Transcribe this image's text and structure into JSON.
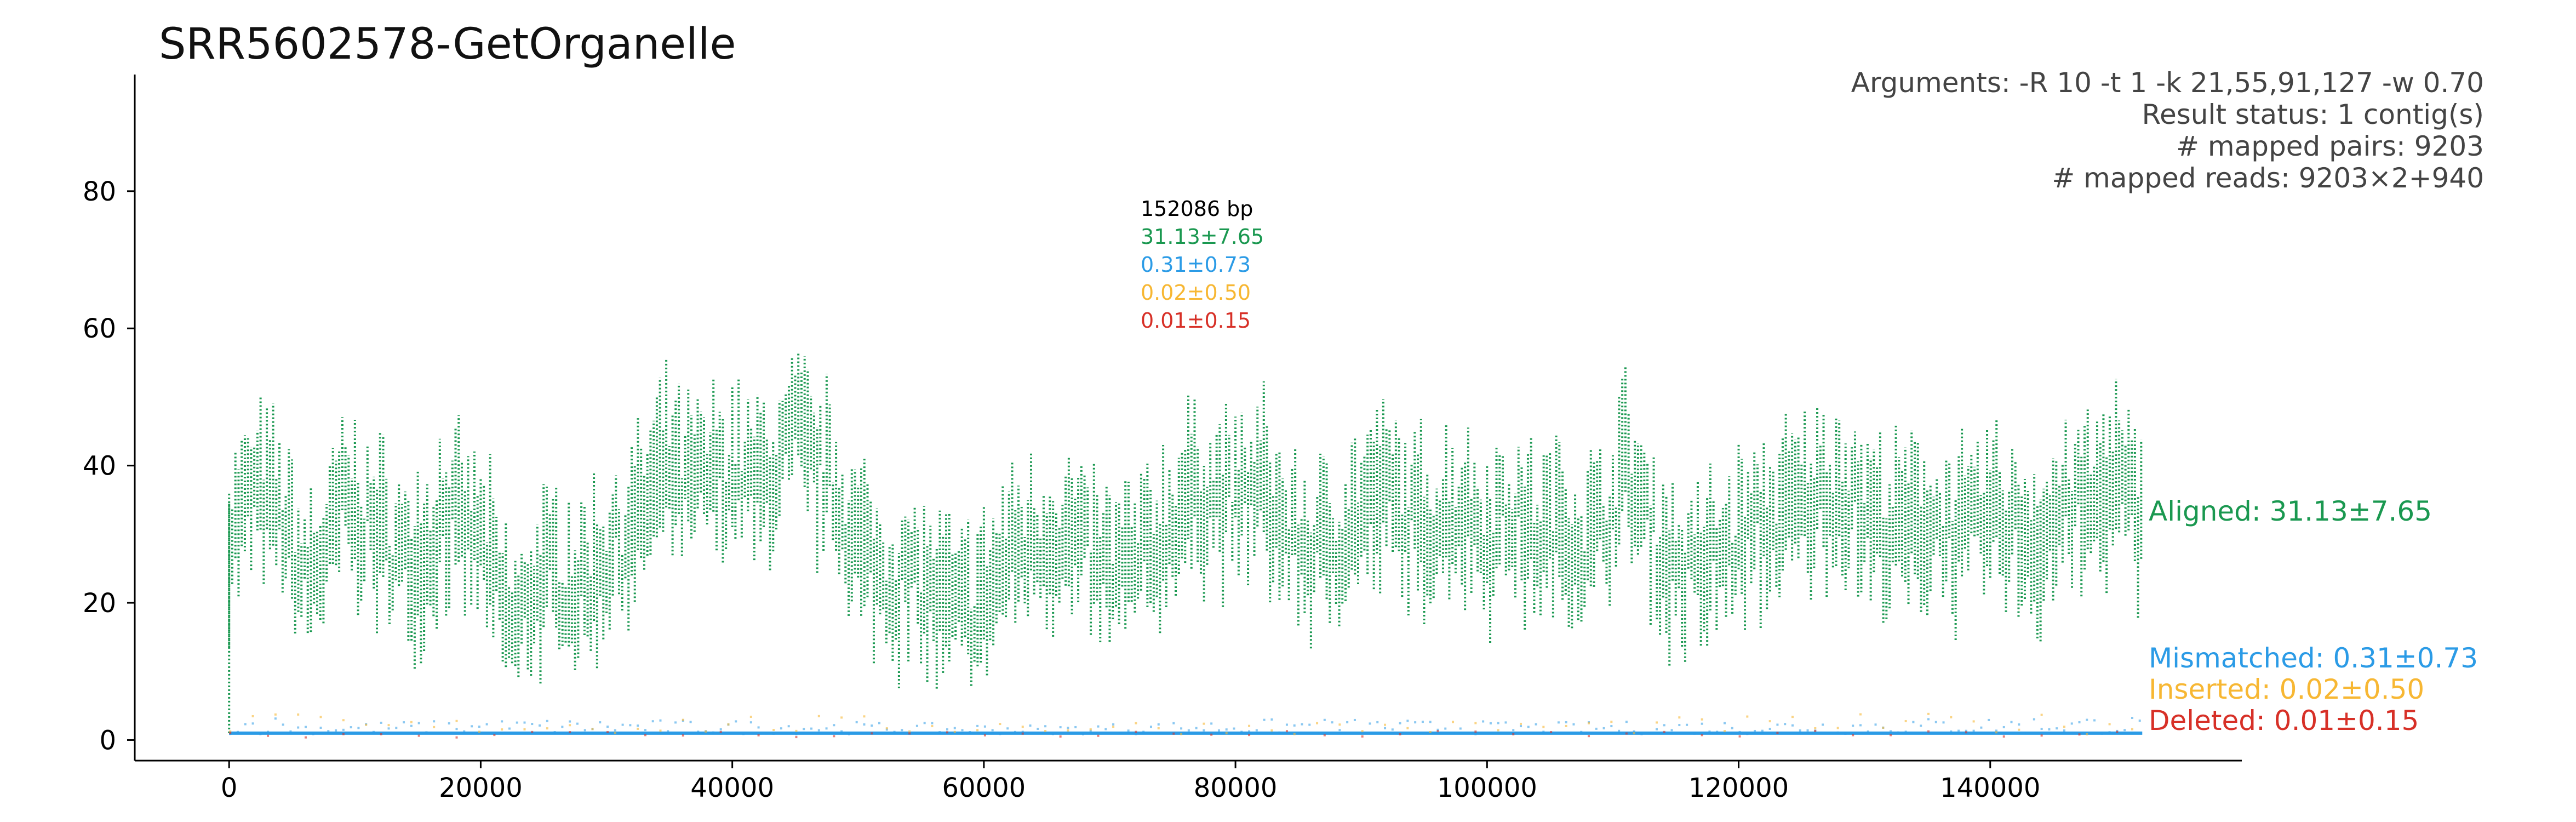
{
  "title": "SRR5602578-GetOrganelle",
  "arguments": {
    "line1": "Arguments: -R 10 -t 1 -k 21,55,91,127 -w 0.70",
    "line2": "Result status: 1 contig(s)",
    "line3": "# mapped pairs: 9203",
    "line4": "# mapped reads: 9203×2+940"
  },
  "center_stats": {
    "length": "152086 bp",
    "aligned": "31.13±7.65",
    "mismatched": "0.31±0.73",
    "inserted": "0.02±0.50",
    "deleted": "0.01±0.15"
  },
  "labels": {
    "aligned": "Aligned: 31.13±7.65",
    "mismatched": "Mismatched: 0.31±0.73",
    "inserted": "Inserted: 0.02±0.50",
    "deleted": "Deleted: 0.01±0.15"
  },
  "colors": {
    "aligned": "#1a9850",
    "mismatched": "#2b9be6",
    "inserted": "#f7b733",
    "deleted": "#d73027",
    "args_text": "#444444"
  },
  "chart_data": {
    "type": "scatter",
    "title": "SRR5602578-GetOrganelle",
    "xlabel": "",
    "ylabel": "",
    "xlim": [
      -7500,
      160000
    ],
    "ylim": [
      -3,
      97
    ],
    "x_ticks": [
      0,
      20000,
      40000,
      60000,
      80000,
      100000,
      120000,
      140000
    ],
    "y_ticks": [
      0,
      20,
      40,
      60,
      80
    ],
    "grid": false,
    "genome_length": 152086,
    "series": [
      {
        "name": "Aligned",
        "color": "#1a9850",
        "x": [
          0,
          2000,
          4000,
          6000,
          8000,
          9000,
          10000,
          12000,
          14000,
          16000,
          17000,
          18000,
          20000,
          22000,
          23000,
          24000,
          26000,
          28000,
          30000,
          32000,
          34000,
          35000,
          36000,
          38000,
          40000,
          42000,
          44000,
          45000,
          46000,
          48000,
          50000,
          52000,
          54000,
          56000,
          58000,
          60000,
          62000,
          64000,
          66000,
          68000,
          70000,
          72000,
          74000,
          76000,
          78000,
          80000,
          82000,
          84000,
          86000,
          88000,
          90000,
          92000,
          94000,
          96000,
          98000,
          100000,
          102000,
          104000,
          106000,
          108000,
          110000,
          111000,
          112000,
          114000,
          116000,
          118000,
          120000,
          122000,
          124000,
          126000,
          128000,
          130000,
          132000,
          134000,
          136000,
          138000,
          140000,
          142000,
          144000,
          146000,
          148000,
          150000,
          152000
        ],
        "y": [
          30,
          36,
          33,
          23,
          28,
          35,
          33,
          30,
          26,
          28,
          34,
          31,
          29,
          18,
          16,
          22,
          24,
          22,
          27,
          30,
          37,
          40,
          36,
          38,
          39,
          37,
          40,
          45,
          41,
          37,
          28,
          24,
          23,
          21,
          18,
          20,
          27,
          29,
          30,
          27,
          24,
          25,
          29,
          35,
          36,
          34,
          37,
          30,
          27,
          29,
          33,
          36,
          31,
          32,
          34,
          30,
          33,
          29,
          31,
          28,
          34,
          40,
          35,
          27,
          24,
          26,
          29,
          31,
          33,
          35,
          37,
          33,
          30,
          31,
          32,
          29,
          33,
          31,
          29,
          34,
          34,
          38,
          31
        ]
      },
      {
        "name": "Mismatched",
        "color": "#2b9be6",
        "baseline": 1,
        "x": [
          5000,
          25000,
          45000,
          65000,
          85000,
          105000,
          125000,
          145000
        ],
        "y": [
          1.5,
          2.0,
          1.8,
          1.2,
          2.1,
          1.6,
          1.9,
          2.4
        ]
      },
      {
        "name": "Inserted",
        "color": "#f7b733",
        "baseline": 0.02,
        "x": [
          10000,
          40000,
          70000,
          100000,
          130000
        ],
        "y": [
          2,
          3,
          2,
          2,
          3
        ]
      },
      {
        "name": "Deleted",
        "color": "#d73027",
        "baseline": 0.01,
        "x": [
          15000,
          50000,
          90000,
          120000
        ],
        "y": [
          1,
          1,
          1,
          1
        ]
      }
    ]
  }
}
